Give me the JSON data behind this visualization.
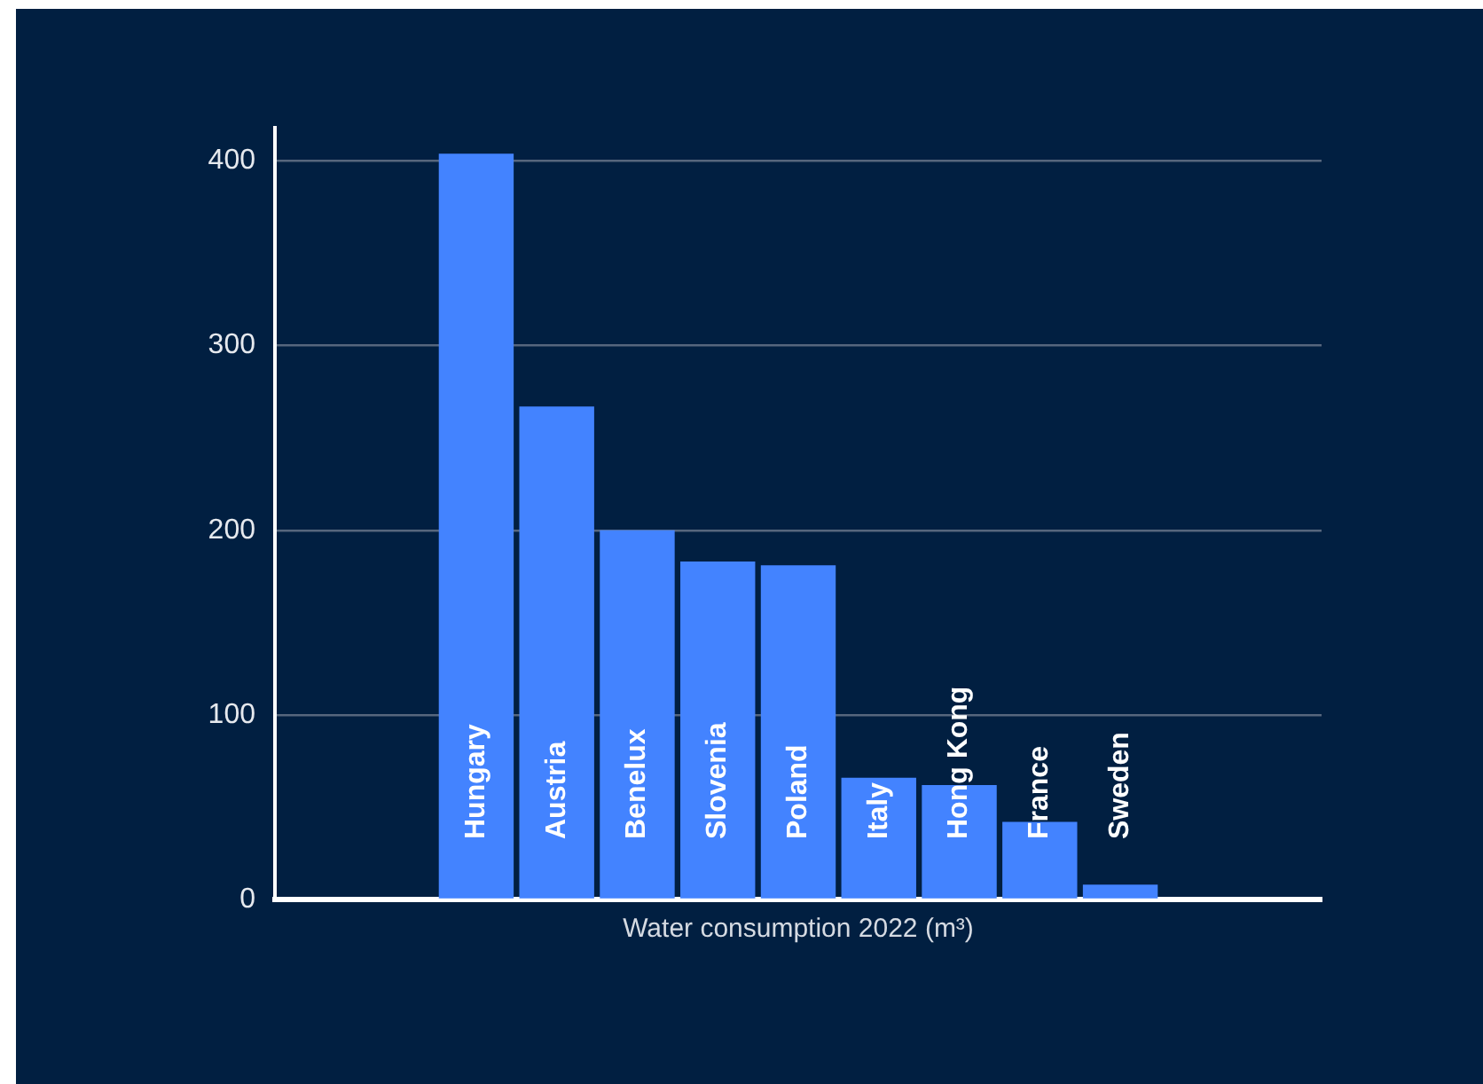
{
  "chart_data": {
    "type": "bar",
    "xlabel": "Water consumption 2022 (m³)",
    "categories": [
      null,
      null,
      "Hungary",
      "Austria",
      "Benelux",
      "Slovenia",
      "Poland",
      "Italy",
      "Hong Kong",
      "France",
      "Sweden",
      null,
      null
    ],
    "values": [
      null,
      null,
      404,
      267,
      200,
      183,
      181,
      66,
      62,
      42,
      8,
      null,
      null
    ],
    "color": "#4383ff",
    "ylim": [
      0,
      418
    ],
    "yticks": [
      0,
      100,
      200,
      300,
      400
    ],
    "grid": "y"
  }
}
